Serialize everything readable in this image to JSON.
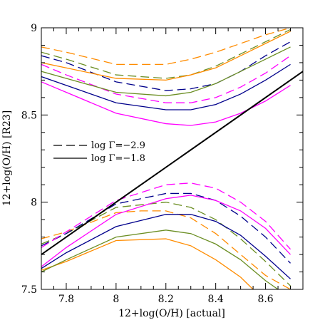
{
  "chart_data": {
    "type": "line",
    "title": "",
    "xlabel": "12+log(O/H) [actual]",
    "ylabel": "12+log(O/H) [R23]",
    "xlim": [
      7.7,
      8.75
    ],
    "ylim": [
      7.5,
      9.0
    ],
    "x_ticks": [
      7.8,
      8.0,
      8.2,
      8.4,
      8.6
    ],
    "x_tick_labels": [
      "7.8",
      "8",
      "8.2",
      "8.4",
      "8.6"
    ],
    "y_ticks": [
      7.5,
      8.0,
      8.5,
      9.0
    ],
    "y_tick_labels": [
      "7.5",
      "8",
      "8.5",
      "9"
    ],
    "grid": false,
    "legend": {
      "placement": "center-left",
      "entries": [
        {
          "label": "log Γ=−2.9",
          "style": "dashed"
        },
        {
          "label": "log Γ=−1.8",
          "style": "solid"
        }
      ]
    },
    "identity_line": {
      "x": [
        7.7,
        8.75
      ],
      "y": [
        7.7,
        8.75
      ],
      "color": "#000000"
    },
    "series": [
      {
        "color": "#ff8c00",
        "style": "dashed",
        "branch": "upper",
        "x": [
          7.7,
          7.8,
          8.0,
          8.2,
          8.3,
          8.4,
          8.5,
          8.6,
          8.7
        ],
        "y": [
          8.89,
          8.86,
          8.79,
          8.79,
          8.82,
          8.86,
          8.91,
          8.96,
          9.0
        ]
      },
      {
        "color": "#6b8e23",
        "style": "dashed",
        "branch": "upper",
        "x": [
          7.7,
          7.8,
          8.0,
          8.2,
          8.3,
          8.4,
          8.5,
          8.6,
          8.7
        ],
        "y": [
          8.86,
          8.82,
          8.73,
          8.71,
          8.73,
          8.78,
          8.85,
          8.92,
          8.99
        ]
      },
      {
        "color": "#00008b",
        "style": "dashed",
        "branch": "upper",
        "x": [
          7.7,
          7.8,
          8.0,
          8.2,
          8.3,
          8.4,
          8.5,
          8.6,
          8.7
        ],
        "y": [
          8.84,
          8.8,
          8.69,
          8.64,
          8.65,
          8.68,
          8.75,
          8.84,
          8.92
        ]
      },
      {
        "color": "#ff00ff",
        "style": "dashed",
        "branch": "upper",
        "x": [
          7.7,
          7.8,
          8.0,
          8.2,
          8.3,
          8.4,
          8.5,
          8.6,
          8.7
        ],
        "y": [
          8.79,
          8.73,
          8.62,
          8.57,
          8.57,
          8.6,
          8.66,
          8.74,
          8.84
        ]
      },
      {
        "color": "#ff8c00",
        "style": "solid",
        "branch": "upper",
        "x": [
          7.7,
          7.8,
          8.0,
          8.2,
          8.3,
          8.4,
          8.5,
          8.6,
          8.7
        ],
        "y": [
          8.8,
          8.77,
          8.71,
          8.7,
          8.73,
          8.77,
          8.84,
          8.91,
          8.98
        ]
      },
      {
        "color": "#6b8e23",
        "style": "solid",
        "branch": "upper",
        "x": [
          7.7,
          7.8,
          8.0,
          8.2,
          8.3,
          8.4,
          8.5,
          8.6,
          8.7
        ],
        "y": [
          8.75,
          8.71,
          8.63,
          8.61,
          8.63,
          8.68,
          8.75,
          8.82,
          8.89
        ]
      },
      {
        "color": "#00008b",
        "style": "solid",
        "branch": "upper",
        "x": [
          7.7,
          7.8,
          8.0,
          8.2,
          8.3,
          8.4,
          8.5,
          8.6,
          8.7
        ],
        "y": [
          8.72,
          8.67,
          8.57,
          8.53,
          8.53,
          8.56,
          8.62,
          8.7,
          8.79
        ]
      },
      {
        "color": "#ff00ff",
        "style": "solid",
        "branch": "upper",
        "x": [
          7.7,
          7.8,
          8.0,
          8.2,
          8.3,
          8.4,
          8.5,
          8.6,
          8.7
        ],
        "y": [
          8.69,
          8.63,
          8.51,
          8.45,
          8.44,
          8.46,
          8.51,
          8.58,
          8.67
        ]
      },
      {
        "color": "#ff8c00",
        "style": "dashed",
        "branch": "lower",
        "x": [
          7.7,
          7.8,
          8.0,
          8.1,
          8.2,
          8.3,
          8.4,
          8.5,
          8.6,
          8.7
        ],
        "y": [
          7.79,
          7.83,
          7.94,
          7.95,
          7.95,
          7.91,
          7.82,
          7.7,
          7.58,
          7.5
        ]
      },
      {
        "color": "#6b8e23",
        "style": "dashed",
        "branch": "lower",
        "x": [
          7.7,
          7.8,
          8.0,
          8.2,
          8.3,
          8.4,
          8.5,
          8.6,
          8.7
        ],
        "y": [
          7.76,
          7.82,
          7.97,
          8.0,
          7.97,
          7.9,
          7.79,
          7.66,
          7.52
        ]
      },
      {
        "color": "#00008b",
        "style": "dashed",
        "branch": "lower",
        "x": [
          7.7,
          7.8,
          8.0,
          8.2,
          8.3,
          8.4,
          8.5,
          8.6,
          8.7
        ],
        "y": [
          7.75,
          7.82,
          7.99,
          8.05,
          8.05,
          8.01,
          7.92,
          7.8,
          7.65
        ]
      },
      {
        "color": "#ff00ff",
        "style": "dashed",
        "branch": "lower",
        "x": [
          7.7,
          7.8,
          8.0,
          8.2,
          8.3,
          8.4,
          8.5,
          8.6,
          8.7
        ],
        "y": [
          7.74,
          7.83,
          8.01,
          8.1,
          8.11,
          8.08,
          8.0,
          7.89,
          7.73
        ]
      },
      {
        "color": "#ff8c00",
        "style": "solid",
        "branch": "lower",
        "x": [
          7.7,
          7.8,
          8.0,
          8.2,
          8.3,
          8.4,
          8.5,
          8.55
        ],
        "y": [
          7.61,
          7.66,
          7.78,
          7.79,
          7.75,
          7.67,
          7.57,
          7.5
        ]
      },
      {
        "color": "#6b8e23",
        "style": "solid",
        "branch": "lower",
        "x": [
          7.7,
          7.8,
          8.0,
          8.2,
          8.3,
          8.4,
          8.5,
          8.6,
          8.65
        ],
        "y": [
          7.6,
          7.67,
          7.8,
          7.84,
          7.82,
          7.76,
          7.67,
          7.55,
          7.5
        ]
      },
      {
        "color": "#00008b",
        "style": "solid",
        "branch": "lower",
        "x": [
          7.7,
          7.8,
          8.0,
          8.2,
          8.3,
          8.4,
          8.5,
          8.6,
          8.7
        ],
        "y": [
          7.62,
          7.71,
          7.86,
          7.93,
          7.93,
          7.89,
          7.81,
          7.69,
          7.56
        ]
      },
      {
        "color": "#ff00ff",
        "style": "solid",
        "branch": "lower",
        "x": [
          7.7,
          7.8,
          8.0,
          8.2,
          8.3,
          8.4,
          8.5,
          8.6,
          8.7
        ],
        "y": [
          7.63,
          7.74,
          7.93,
          8.02,
          8.04,
          8.01,
          7.95,
          7.85,
          7.7
        ]
      }
    ]
  }
}
